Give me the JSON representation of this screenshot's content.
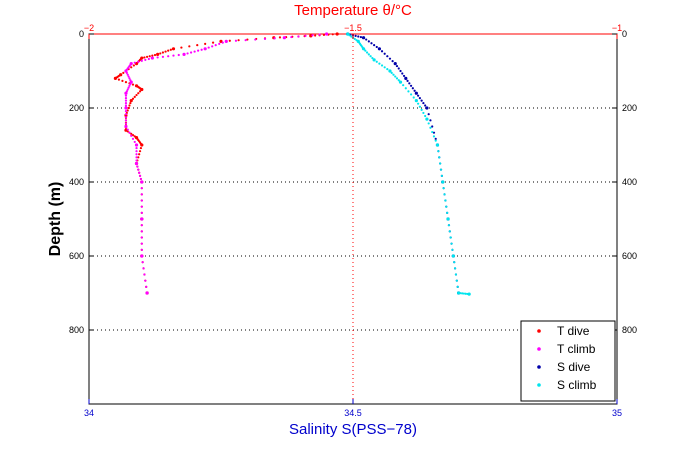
{
  "chart_data": {
    "type": "scatter",
    "title": "Temperature θ/°C",
    "xlabel": "Salinity S(PSS−78)",
    "ylabel": "Depth (m)",
    "top_axis": {
      "range": [
        -2,
        -1
      ],
      "ticks": [
        "−2",
        "−1.5",
        "−1"
      ],
      "ticks_values": [
        -2,
        -1.5,
        -1
      ],
      "color": "#ff0000"
    },
    "bottom_axis": {
      "range": [
        34,
        35
      ],
      "ticks": [
        "34",
        "34.5",
        "35"
      ],
      "ticks_values": [
        34,
        34.5,
        35
      ],
      "color": "#0000cc"
    },
    "y_axis": {
      "range": [
        0,
        1000
      ],
      "reversed": true,
      "ticks": [
        "0",
        "200",
        "400",
        "600",
        "800"
      ],
      "ticks_values": [
        0,
        200,
        400,
        600,
        800
      ]
    },
    "grid": "dotted, at depth 200/400/600/800 and at x midline",
    "legend_position": "bottom-right",
    "legend": [
      "T dive",
      "T climb",
      "S dive",
      "S climb"
    ],
    "series": [
      {
        "name": "T dive",
        "axis": "top",
        "color": "#ff0000",
        "marker": "dot",
        "points": [
          [
            -1.53,
            0
          ],
          [
            -1.58,
            5
          ],
          [
            -1.65,
            10
          ],
          [
            -1.75,
            20
          ],
          [
            -1.84,
            40
          ],
          [
            -1.87,
            55
          ],
          [
            -1.9,
            65
          ],
          [
            -1.91,
            80
          ],
          [
            -1.94,
            110
          ],
          [
            -1.95,
            120
          ],
          [
            -1.91,
            140
          ],
          [
            -1.9,
            150
          ],
          [
            -1.92,
            180
          ],
          [
            -1.93,
            220
          ],
          [
            -1.93,
            260
          ],
          [
            -1.91,
            280
          ],
          [
            -1.9,
            300
          ],
          [
            -1.91,
            350
          ],
          [
            -1.9,
            400
          ],
          [
            -1.9,
            500
          ],
          [
            -1.9,
            600
          ],
          [
            -1.89,
            700
          ]
        ]
      },
      {
        "name": "T climb",
        "axis": "top",
        "color": "#ff00ff",
        "marker": "dot",
        "points": [
          [
            -1.55,
            0
          ],
          [
            -1.63,
            10
          ],
          [
            -1.74,
            20
          ],
          [
            -1.78,
            40
          ],
          [
            -1.82,
            55
          ],
          [
            -1.88,
            65
          ],
          [
            -1.92,
            80
          ],
          [
            -1.93,
            100
          ],
          [
            -1.92,
            130
          ],
          [
            -1.93,
            160
          ],
          [
            -1.93,
            200
          ],
          [
            -1.93,
            250
          ],
          [
            -1.91,
            300
          ],
          [
            -1.91,
            350
          ],
          [
            -1.9,
            400
          ],
          [
            -1.9,
            500
          ],
          [
            -1.9,
            600
          ],
          [
            -1.89,
            700
          ]
        ]
      },
      {
        "name": "S dive",
        "axis": "bottom",
        "color": "#0000aa",
        "marker": "dot",
        "points": [
          [
            34.49,
            0
          ],
          [
            34.52,
            10
          ],
          [
            34.55,
            40
          ],
          [
            34.58,
            80
          ],
          [
            34.6,
            120
          ],
          [
            34.62,
            160
          ],
          [
            34.64,
            200
          ],
          [
            34.66,
            300
          ],
          [
            34.67,
            400
          ],
          [
            34.68,
            500
          ],
          [
            34.69,
            600
          ],
          [
            34.7,
            700
          ]
        ]
      },
      {
        "name": "S climb",
        "axis": "bottom",
        "color": "#00e5ee",
        "marker": "dot",
        "points": [
          [
            34.49,
            0
          ],
          [
            34.51,
            20
          ],
          [
            34.52,
            40
          ],
          [
            34.54,
            70
          ],
          [
            34.57,
            100
          ],
          [
            34.59,
            130
          ],
          [
            34.62,
            180
          ],
          [
            34.64,
            230
          ],
          [
            34.66,
            300
          ],
          [
            34.67,
            400
          ],
          [
            34.68,
            500
          ],
          [
            34.69,
            600
          ],
          [
            34.7,
            700
          ],
          [
            34.72,
            703
          ]
        ]
      }
    ]
  }
}
